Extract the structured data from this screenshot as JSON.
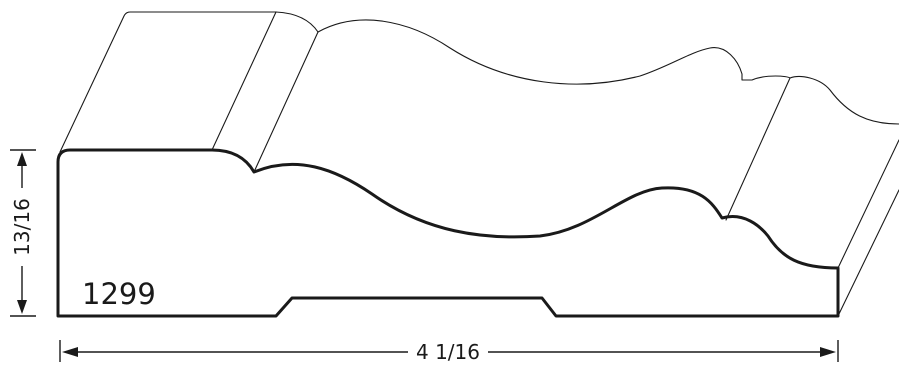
{
  "diagram": {
    "model_number": "1299",
    "height_dimension": "13/16",
    "width_dimension": "4 1/16",
    "colors": {
      "profile_stroke": "#1a1a1a",
      "background": "#ffffff"
    }
  }
}
